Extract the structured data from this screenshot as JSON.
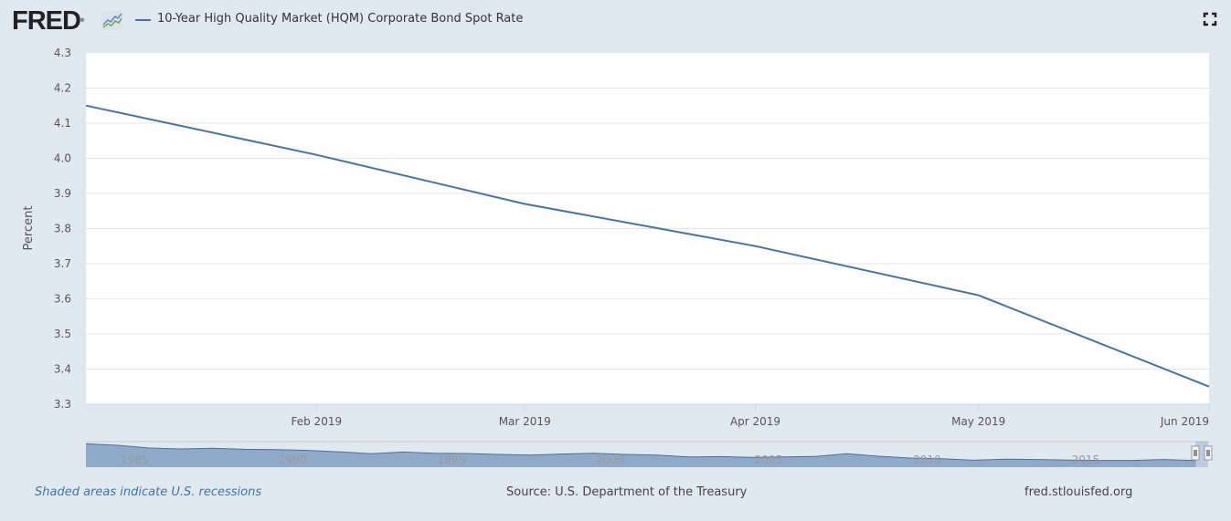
{
  "header": {
    "logo_text": "FRED",
    "logo_reg": "®",
    "series_title": "10-Year High Quality Market (HQM) Corporate Bond Spot Rate",
    "fullscreen_icon": "fullscreen-icon"
  },
  "footer": {
    "recession_note": "Shaded areas indicate U.S. recessions",
    "source": "Source: U.S. Department of the Treasury",
    "site": "fred.stlouisfed.org"
  },
  "colors": {
    "series": "#4572a7",
    "navigator_fill": "#8faac8",
    "background": "#e1e9f0",
    "plot_background": "#ffffff",
    "grid": "#e6e6e6",
    "logo_line_blue": "#5b87c5",
    "logo_line_green": "#6aa84f"
  },
  "chart_data": {
    "type": "line",
    "title": "10-Year High Quality Market (HQM) Corporate Bond Spot Rate",
    "xlabel": "",
    "ylabel": "Percent",
    "ylim": [
      3.3,
      4.3
    ],
    "yticks": [
      "4.3",
      "4.2",
      "4.1",
      "4.0",
      "3.9",
      "3.8",
      "3.7",
      "3.6",
      "3.5",
      "3.4",
      "3.3"
    ],
    "ytick_values": [
      4.3,
      4.2,
      4.1,
      4.0,
      3.9,
      3.8,
      3.7,
      3.6,
      3.5,
      3.4,
      3.3
    ],
    "xrange": [
      "2019-01-01",
      "2019-06-01"
    ],
    "xticks": [
      {
        "label": "Feb 2019",
        "date": "2019-02-01"
      },
      {
        "label": "Mar 2019",
        "date": "2019-03-01"
      },
      {
        "label": "Apr 2019",
        "date": "2019-04-01"
      },
      {
        "label": "May 2019",
        "date": "2019-05-01"
      },
      {
        "label": "Jun 2019",
        "date": "2019-06-01"
      }
    ],
    "grid": true,
    "legend": "top-left",
    "series": [
      {
        "name": "10-Year High Quality Market (HQM) Corporate Bond Spot Rate",
        "x": [
          "2019-01-01",
          "2019-02-01",
          "2019-03-01",
          "2019-04-01",
          "2019-05-01",
          "2019-06-01"
        ],
        "values": [
          4.15,
          4.01,
          3.87,
          3.75,
          3.61,
          3.35
        ]
      }
    ],
    "navigator": {
      "range_years": [
        1984,
        2019
      ],
      "tick_labels": [
        "1985",
        "1990",
        "1995",
        "2000",
        "2005",
        "2010",
        "2015"
      ],
      "tick_years": [
        1985,
        1990,
        1995,
        2000,
        2005,
        2010,
        2015
      ],
      "selected_range": [
        "2019-01-01",
        "2019-06-01"
      ],
      "approx_series_years": [
        1984,
        1985,
        1986,
        1987,
        1988,
        1989,
        1990,
        1991,
        1992,
        1993,
        1994,
        1995,
        1996,
        1997,
        1998,
        1999,
        2000,
        2001,
        2002,
        2003,
        2004,
        2005,
        2006,
        2007,
        2008,
        2009,
        2010,
        2011,
        2012,
        2013,
        2014,
        2015,
        2016,
        2017,
        2018,
        2019
      ],
      "approx_series_values": [
        12.8,
        12.0,
        10.5,
        10.0,
        10.4,
        9.8,
        9.6,
        9.2,
        8.4,
        7.4,
        8.3,
        7.6,
        7.5,
        7.0,
        6.6,
        7.2,
        7.6,
        7.0,
        6.6,
        5.6,
        5.8,
        5.4,
        5.6,
        5.9,
        7.4,
        6.0,
        5.0,
        4.6,
        3.8,
        4.4,
        4.2,
        3.9,
        3.7,
        3.7,
        4.2,
        3.6
      ]
    }
  }
}
